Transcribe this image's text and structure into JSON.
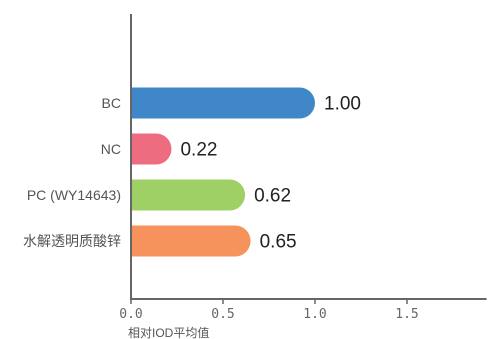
{
  "chart_data": {
    "type": "bar",
    "orientation": "horizontal",
    "categories": [
      "BC",
      "NC",
      "PC (WY14643)",
      "水解透明质酸锌"
    ],
    "values": [
      1.0,
      0.22,
      0.62,
      0.65
    ],
    "value_labels": [
      "1.00",
      "0.22",
      "0.62",
      "0.65"
    ],
    "colors": [
      "#3f87c9",
      "#ee6c80",
      "#9ed066",
      "#f6935c"
    ],
    "xlabel": "相对IOD平均值",
    "xlim": [
      0,
      1.9
    ],
    "xticks": [
      0.0,
      0.5,
      1.0,
      1.5
    ],
    "xtick_labels": [
      "0.0",
      "0.5",
      "1.0",
      "1.5"
    ],
    "grid": false,
    "legend": "none"
  }
}
